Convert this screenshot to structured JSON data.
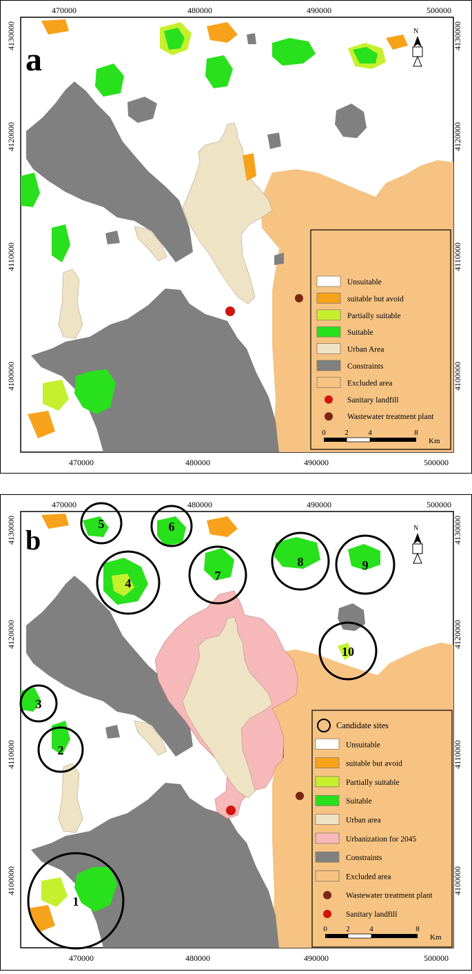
{
  "panel_a": {
    "label": "a",
    "x_ticks": [
      "470000",
      "480000",
      "490000",
      "500000"
    ],
    "y_ticks": [
      "4100000",
      "4110000",
      "4120000",
      "4130000"
    ],
    "north_label": "N",
    "legend": [
      {
        "text": "Unsuitable",
        "color": "#ffffff",
        "symbol": "box"
      },
      {
        "text": "suitable but avoid",
        "color": "#f7a21b",
        "symbol": "box"
      },
      {
        "text": "Partially suitable",
        "color": "#c6f02e",
        "symbol": "box"
      },
      {
        "text": "Suitable",
        "color": "#28e01c",
        "symbol": "box"
      },
      {
        "text": "Urban Area",
        "color": "#efe3c6",
        "symbol": "box"
      },
      {
        "text": "Constraints",
        "color": "#808080",
        "symbol": "box"
      },
      {
        "text": "Excluded area",
        "color": "#f6c383",
        "symbol": "box"
      },
      {
        "text": "Sanitary landfill",
        "color": "#d0140e",
        "symbol": "dot"
      },
      {
        "text": "Wastewater treatment plant",
        "color": "#7a2613",
        "symbol": "dot"
      }
    ],
    "scale_labels": [
      "0",
      "2",
      "4",
      "8"
    ],
    "scale_unit": "Km"
  },
  "panel_b": {
    "label": "b",
    "x_ticks": [
      "470000",
      "480000",
      "490000",
      "500000"
    ],
    "y_ticks": [
      "4100000",
      "4110000",
      "4120000",
      "4130000"
    ],
    "north_label": "N",
    "candidate_sites": [
      "1",
      "2",
      "3",
      "4",
      "5",
      "6",
      "7",
      "8",
      "9",
      "10"
    ],
    "legend": [
      {
        "text": "Candidate sites",
        "color": "#000000",
        "symbol": "circle"
      },
      {
        "text": "Unsuitable",
        "color": "#ffffff",
        "symbol": "box"
      },
      {
        "text": "suitable but avoid",
        "color": "#f7a21b",
        "symbol": "box"
      },
      {
        "text": "Partially suitable",
        "color": "#c6f02e",
        "symbol": "box"
      },
      {
        "text": "Suitable",
        "color": "#28e01c",
        "symbol": "box"
      },
      {
        "text": "Urban area",
        "color": "#efe3c6",
        "symbol": "box"
      },
      {
        "text": "Urbanization for 2045",
        "color": "#f6b8b8",
        "symbol": "box"
      },
      {
        "text": "Constraints",
        "color": "#808080",
        "symbol": "box"
      },
      {
        "text": "Excluded area",
        "color": "#f6c383",
        "symbol": "box"
      },
      {
        "text": "Wastewater treatment plant",
        "color": "#7a2613",
        "symbol": "dot"
      },
      {
        "text": "Sanitary landfill",
        "color": "#d0140e",
        "symbol": "dot"
      }
    ],
    "scale_labels": [
      "0",
      "2",
      "4",
      "8"
    ],
    "scale_unit": "Km"
  },
  "colors": {
    "excluded": "#f6c383",
    "constraints": "#808080",
    "urban": "#efe3c6",
    "urbanization_2045": "#f6b8b8",
    "suitable": "#28e01c",
    "partially_suitable": "#c6f02e",
    "avoid": "#f7a21b",
    "landfill": "#d0140e",
    "wwtp": "#7a2613"
  }
}
